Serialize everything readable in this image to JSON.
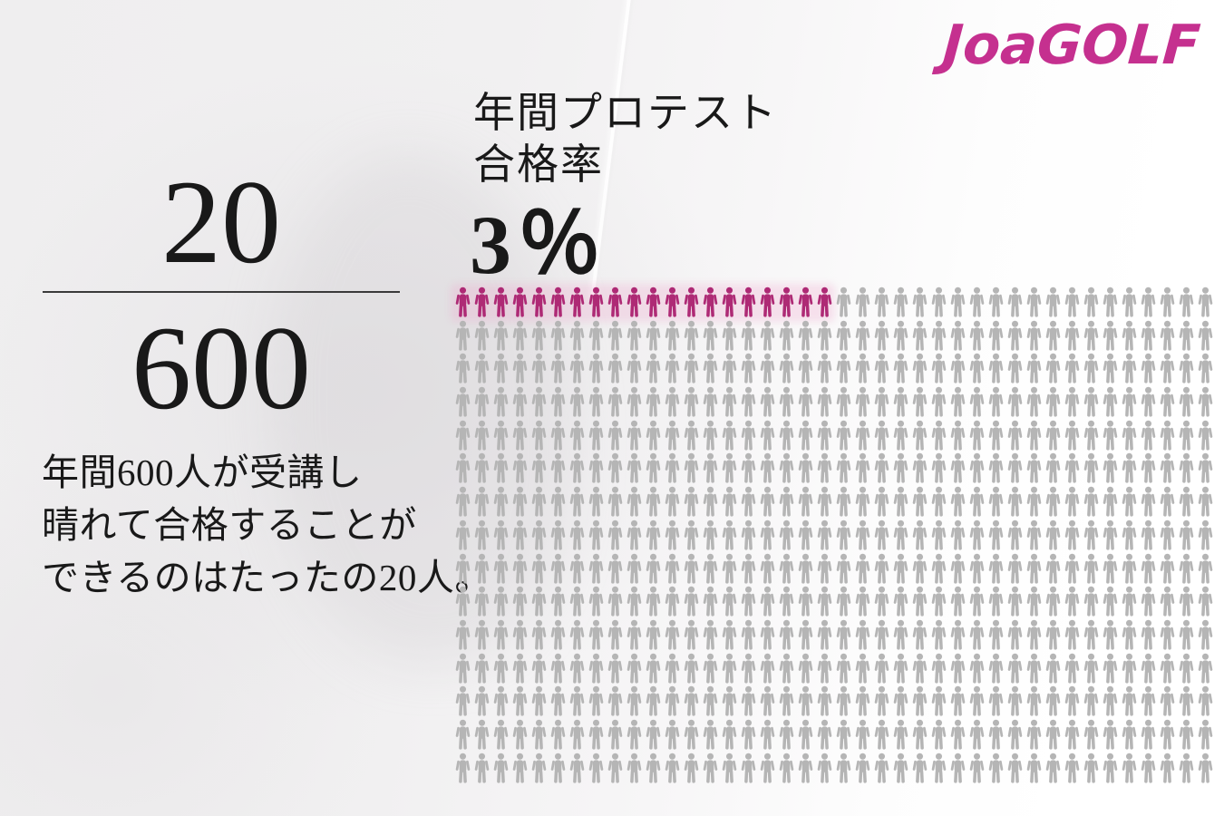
{
  "brand": {
    "logo_text": "JoaGOLF",
    "logo_color": "#c5308f"
  },
  "headline": {
    "line1": "年間プロテスト",
    "line2": "合格率",
    "rate": "3％"
  },
  "fraction": {
    "numerator": "20",
    "denominator": "600"
  },
  "description": {
    "line1": "年間600人が受講し",
    "line2": "晴れて合格することが",
    "line3": "できるのはたったの20人。"
  },
  "chart_data": {
    "type": "pictogram",
    "title": "年間プロテスト合格率",
    "value_label": "3％",
    "rate_percent": 3,
    "total_icons": 600,
    "highlighted_icons": 20,
    "grid_rows": 15,
    "grid_columns": 40,
    "highlight_color": "#ae2a75",
    "base_color": "#b5b5b5",
    "legend_position": "none",
    "note": "20 of 600 person icons highlighted; highlighted icons fill columns 1-20 of row 1"
  }
}
